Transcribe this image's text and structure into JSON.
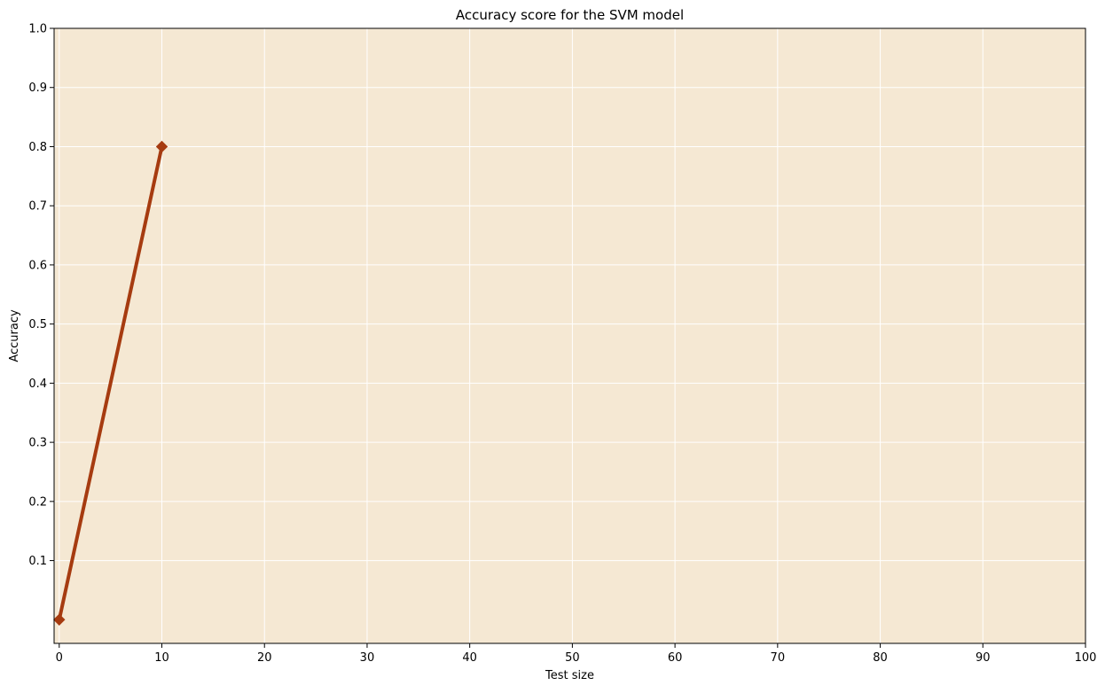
{
  "chart_data": {
    "type": "line",
    "title": "Accuracy score for the SVM model",
    "xlabel": "Test size",
    "ylabel": "Accuracy",
    "xlim": [
      -0.5,
      100
    ],
    "ylim": [
      -0.04,
      1.0
    ],
    "xticks": [
      0,
      10,
      20,
      30,
      40,
      50,
      60,
      70,
      80,
      90,
      100
    ],
    "xtick_labels": [
      "0",
      "10",
      "20",
      "30",
      "40",
      "50",
      "60",
      "70",
      "80",
      "90",
      "100"
    ],
    "yticks": [
      0.1,
      0.2,
      0.3,
      0.4,
      0.5,
      0.6,
      0.7,
      0.8,
      0.9,
      1.0
    ],
    "ytick_labels": [
      "0.1",
      "0.2",
      "0.3",
      "0.4",
      "0.5",
      "0.6",
      "0.7",
      "0.8",
      "0.9",
      "1.0"
    ],
    "grid": true,
    "series": [
      {
        "x": [
          0,
          10
        ],
        "y": [
          0.0,
          0.8
        ],
        "marker": "diamond"
      }
    ],
    "colors": {
      "background": "#f5e8d3",
      "line": "#a63b10",
      "grid": "#ffffff"
    }
  }
}
